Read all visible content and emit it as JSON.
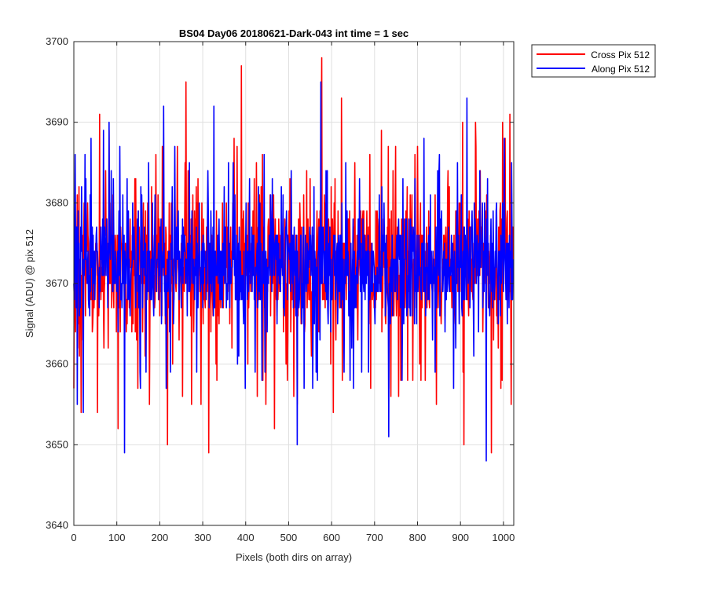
{
  "chart_data": {
    "type": "line",
    "title": "BS04 Day06 20180621-Dark-043 int time = 1 sec",
    "xlabel": "Pixels (both dirs on array)",
    "ylabel": "Signal (ADU) @ pix 512",
    "xlim": [
      0,
      1024
    ],
    "ylim": [
      3640,
      3700
    ],
    "xticks": [
      0,
      100,
      200,
      300,
      400,
      500,
      600,
      700,
      800,
      900,
      1000
    ],
    "yticks": [
      3640,
      3650,
      3660,
      3670,
      3680,
      3690,
      3700
    ],
    "grid": true,
    "legend_position": "outside top-right",
    "mean_value": 3671,
    "series": [
      {
        "name": "Cross Pix 512",
        "color": "#ff0000",
        "n_points": 1024,
        "x_start": 0,
        "x_step": 1,
        "seed": 51231,
        "noise_range": [
          3660,
          3684
        ],
        "spikes": [
          [
            9,
            3662
          ],
          [
            17,
            3654
          ],
          [
            40,
            3668
          ],
          [
            60,
            3691
          ],
          [
            82,
            3689
          ],
          [
            103,
            3652
          ],
          [
            119,
            3670
          ],
          [
            142,
            3683
          ],
          [
            176,
            3655
          ],
          [
            191,
            3686
          ],
          [
            218,
            3650
          ],
          [
            241,
            3687
          ],
          [
            261,
            3695
          ],
          [
            289,
            3683
          ],
          [
            314,
            3649
          ],
          [
            346,
            3680
          ],
          [
            373,
            3688
          ],
          [
            390,
            3697
          ],
          [
            405,
            3660
          ],
          [
            420,
            3683
          ],
          [
            439,
            3686
          ],
          [
            467,
            3652
          ],
          [
            493,
            3670
          ],
          [
            535,
            3681
          ],
          [
            550,
            3683
          ],
          [
            577,
            3698
          ],
          [
            608,
            3683
          ],
          [
            623,
            3693
          ],
          [
            652,
            3677
          ],
          [
            689,
            3686
          ],
          [
            716,
            3689
          ],
          [
            743,
            3684
          ],
          [
            800,
            3687
          ],
          [
            808,
            3658
          ],
          [
            844,
            3655
          ],
          [
            871,
            3684
          ],
          [
            905,
            3690
          ],
          [
            908,
            3650
          ],
          [
            935,
            3690
          ],
          [
            946,
            3684
          ],
          [
            972,
            3649
          ],
          [
            998,
            3690
          ],
          [
            1015,
            3691
          ]
        ]
      },
      {
        "name": "Along Pix 512",
        "color": "#0000ff",
        "n_points": 1024,
        "x_start": 0,
        "x_step": 1,
        "seed": 77213,
        "noise_range": [
          3662,
          3682
        ],
        "spikes": [
          [
            3,
            3686
          ],
          [
            8,
            3655
          ],
          [
            22,
            3654
          ],
          [
            40,
            3688
          ],
          [
            52,
            3676
          ],
          [
            69,
            3689
          ],
          [
            82,
            3690
          ],
          [
            107,
            3687
          ],
          [
            118,
            3649
          ],
          [
            124,
            3683
          ],
          [
            140,
            3677
          ],
          [
            156,
            3682
          ],
          [
            209,
            3692
          ],
          [
            235,
            3687
          ],
          [
            269,
            3685
          ],
          [
            286,
            3659
          ],
          [
            326,
            3692
          ],
          [
            350,
            3682
          ],
          [
            371,
            3685
          ],
          [
            409,
            3683
          ],
          [
            439,
            3674
          ],
          [
            462,
            3683
          ],
          [
            483,
            3682
          ],
          [
            506,
            3684
          ],
          [
            520,
            3650
          ],
          [
            559,
            3682
          ],
          [
            575,
            3695
          ],
          [
            590,
            3684
          ],
          [
            633,
            3685
          ],
          [
            665,
            3683
          ],
          [
            688,
            3668
          ],
          [
            722,
            3680
          ],
          [
            733,
            3651
          ],
          [
            766,
            3683
          ],
          [
            815,
            3688
          ],
          [
            830,
            3681
          ],
          [
            851,
            3686
          ],
          [
            889,
            3662
          ],
          [
            915,
            3693
          ],
          [
            932,
            3680
          ],
          [
            960,
            3648
          ],
          [
            968,
            3666
          ],
          [
            1002,
            3688
          ],
          [
            1019,
            3685
          ]
        ]
      }
    ]
  }
}
